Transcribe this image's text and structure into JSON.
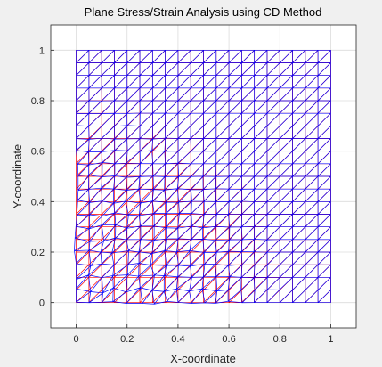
{
  "chart_data": {
    "type": "mesh",
    "title": "Plane Stress/Strain Analysis using CD Method",
    "xlabel": "X-coordinate",
    "ylabel": "Y-coordinate",
    "xlim": [
      -0.1,
      1.1
    ],
    "ylim": [
      -0.1,
      1.1
    ],
    "xticks": [
      "0",
      "0.2",
      "0.4",
      "0.6",
      "0.8",
      "1"
    ],
    "yticks": [
      "0",
      "0.2",
      "0.4",
      "0.6",
      "0.8",
      "1"
    ],
    "grid": true,
    "mesh": {
      "x_range": [
        0,
        1
      ],
      "y_range": [
        0,
        1
      ],
      "divisions": 20,
      "element": "triangle"
    },
    "series": [
      {
        "role": "undeformed mesh",
        "color": "#ff0000"
      },
      {
        "role": "deformed mesh",
        "color": "#0000ff"
      }
    ],
    "colors": {
      "axes_background": "#ffffff",
      "figure_background": "#f0f0f0",
      "grid": "#dcdcdc"
    }
  }
}
